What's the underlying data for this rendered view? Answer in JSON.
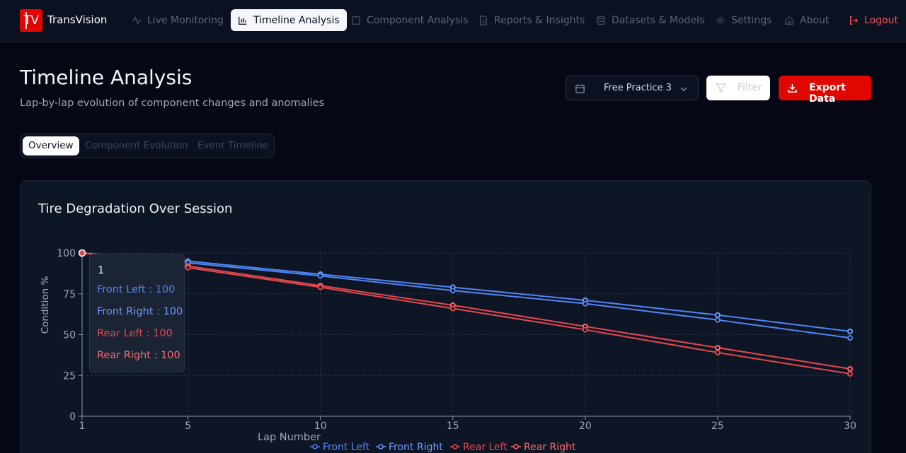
{
  "app": {
    "logo_text": "TV",
    "brand": "TransVision"
  },
  "nav": {
    "items": [
      {
        "label": "Live Monitoring",
        "icon": "activity-icon"
      },
      {
        "label": "Timeline Analysis",
        "icon": "bar-chart-icon",
        "active": true
      },
      {
        "label": "Component Analysis",
        "icon": "square-icon"
      },
      {
        "label": "Reports & Insights",
        "icon": "file-text-icon"
      },
      {
        "label": "Datasets & Models",
        "icon": "database-icon"
      },
      {
        "label": "Settings",
        "icon": "gear-icon"
      },
      {
        "label": "About",
        "icon": "home-icon"
      }
    ],
    "logout": "Logout"
  },
  "header": {
    "title": "Timeline Analysis",
    "subtitle": "Lap-by-lap evolution of component changes and anomalies",
    "session_select": "Free Practice 3",
    "filter_label": "Filter",
    "export_label": "Export Data"
  },
  "tabs": [
    {
      "label": "Overview",
      "active": true
    },
    {
      "label": "Component Evolution"
    },
    {
      "label": "Event Timeline"
    }
  ],
  "card": {
    "title": "Tire Degradation Over Session"
  },
  "colors": {
    "accent": "#e10600",
    "front": "#4f86f7",
    "rear": "#e5484d"
  },
  "tooltip": {
    "label": "1",
    "rows": [
      {
        "name": "Front Left",
        "value": 100,
        "text": "Front Left : 100"
      },
      {
        "name": "Front Right",
        "value": 100,
        "text": "Front Right : 100"
      },
      {
        "name": "Rear Left",
        "value": 100,
        "text": "Rear Left : 100"
      },
      {
        "name": "Rear Right",
        "value": 100,
        "text": "Rear Right : 100"
      }
    ]
  },
  "chart_data": {
    "type": "line",
    "title": "Tire Degradation Over Session",
    "xlabel": "Lap Number",
    "ylabel": "Condition %",
    "x": [
      1,
      5,
      10,
      15,
      20,
      25,
      30
    ],
    "xticks": [
      1,
      5,
      10,
      15,
      20,
      25,
      30
    ],
    "yticks": [
      0,
      25,
      50,
      75,
      100
    ],
    "xlim": [
      1,
      30
    ],
    "ylim": [
      0,
      100
    ],
    "grid": true,
    "legend": "bottom",
    "series": [
      {
        "name": "Front Left",
        "color": "#4f86f7",
        "values": [
          100,
          95,
          87,
          79,
          71,
          62,
          52
        ]
      },
      {
        "name": "Front Right",
        "color": "#4f86f7",
        "values": [
          100,
          94,
          86,
          77,
          69,
          59,
          48
        ]
      },
      {
        "name": "Rear Left",
        "color": "#e5484d",
        "values": [
          100,
          92,
          80,
          68,
          55,
          42,
          29
        ]
      },
      {
        "name": "Rear Right",
        "color": "#e5484d",
        "values": [
          100,
          91,
          79,
          66,
          53,
          39,
          26
        ]
      }
    ]
  }
}
